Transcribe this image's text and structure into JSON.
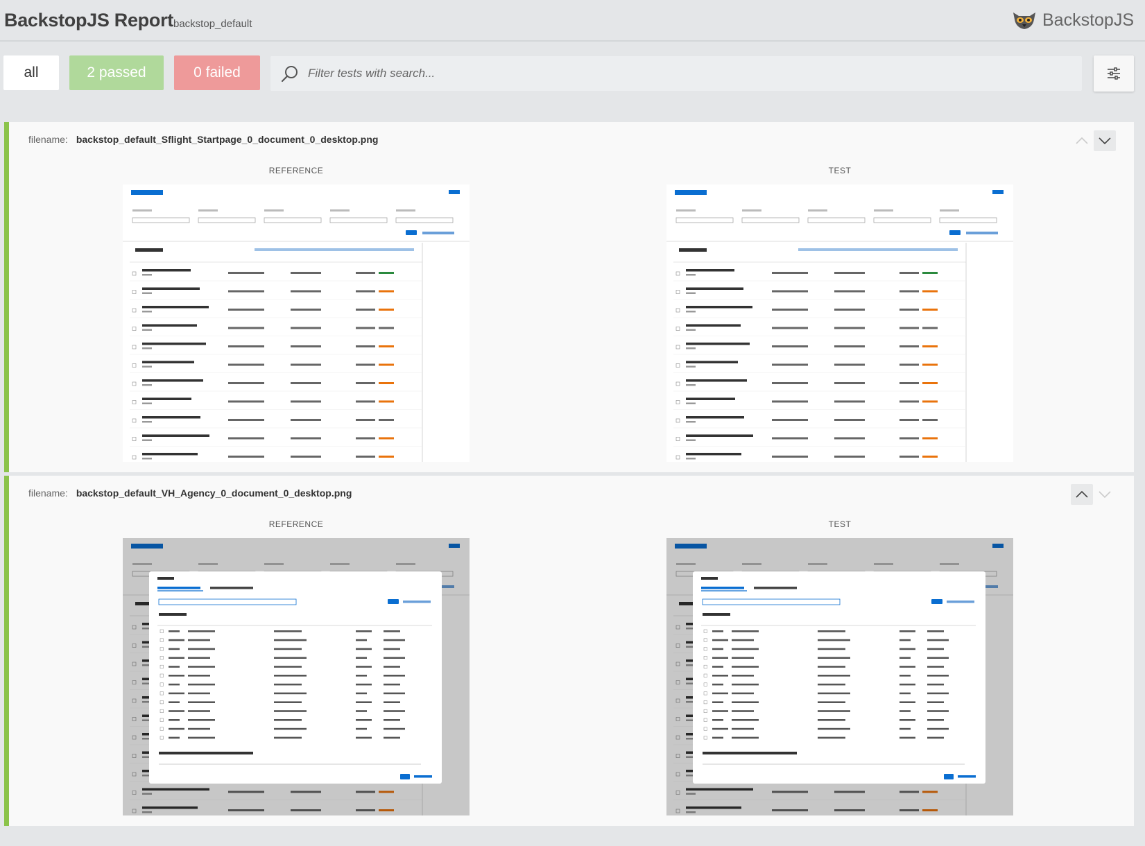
{
  "header": {
    "title": "BackstopJS Report",
    "config": "backstop_default",
    "brand": "BackstopJS"
  },
  "toolbar": {
    "all_label": "all",
    "passed_label": "2 passed",
    "failed_label": "0 failed",
    "search_placeholder": "Filter tests with search...",
    "colors": {
      "passed": "#b0d99b",
      "failed": "#ee9a9a",
      "status_bar": "#8bc34a"
    }
  },
  "tests": [
    {
      "filename_label": "filename:",
      "filename": "backstop_default_Sflight_Startpage_0_document_0_desktop.png",
      "reference_label": "REFERENCE",
      "test_label": "TEST",
      "status": "passed"
    },
    {
      "filename_label": "filename:",
      "filename": "backstop_default_VH_Agency_0_document_0_desktop.png",
      "reference_label": "REFERENCE",
      "test_label": "TEST",
      "status": "passed"
    }
  ],
  "icons": {
    "search": "search-icon",
    "settings": "sliders-icon",
    "collapse": "chevron-up-icon",
    "expand": "chevron-down-icon",
    "logo": "lemur-logo-icon"
  }
}
